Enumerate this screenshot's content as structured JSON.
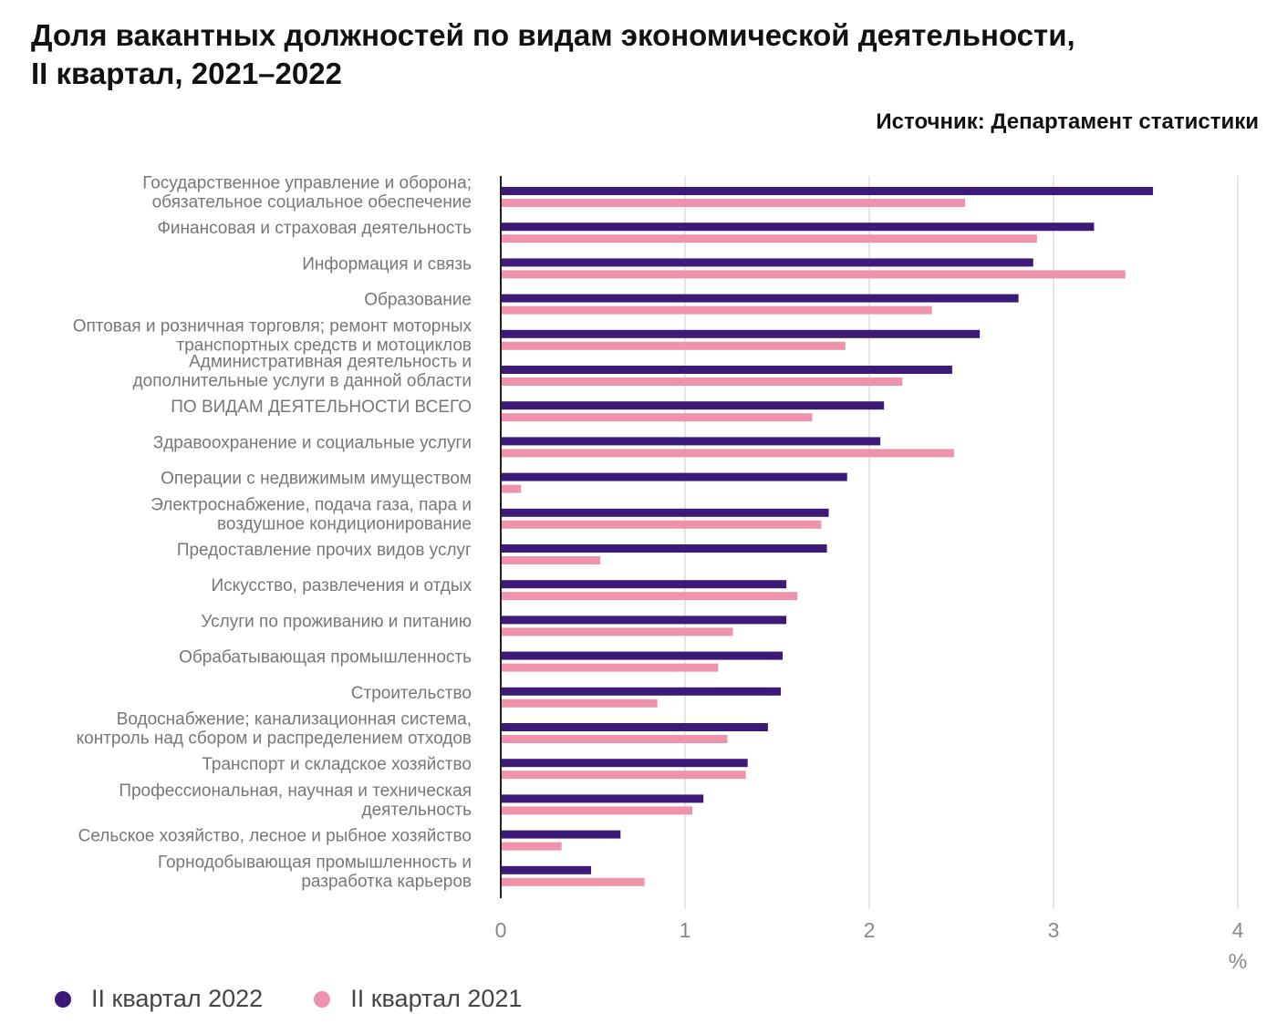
{
  "title_line1": "Доля вакантных должностей по видам экономической деятельности,",
  "title_line2": "II квартал, 2021–2022",
  "source": "Источник: Департамент статистики",
  "colors": {
    "q2_2022": "#3d1a78",
    "q2_2021": "#ef93ad",
    "grid": "#dddddd",
    "axis": "#222222"
  },
  "chart_data": {
    "type": "bar",
    "orientation": "horizontal",
    "categories": [
      [
        "Государственное управление и оборона;",
        "обязательное социальное обеспечение"
      ],
      [
        "Финансовая и страховая деятельность"
      ],
      [
        "Информация и связь"
      ],
      [
        "Образование"
      ],
      [
        "Оптовая и розничная торговля; ремонт моторных",
        "транспортных средств и мотоциклов"
      ],
      [
        "Административная деятельность и",
        "дополнительные услуги в данной области"
      ],
      [
        "ПО ВИДАМ ДЕЯТЕЛЬНОСТИ ВСЕГО"
      ],
      [
        "Здравоохранение и социальные услуги"
      ],
      [
        "Операции с недвижимым имуществом"
      ],
      [
        "Электроснабжение, подача газа, пара и",
        "воздушное кондиционирование"
      ],
      [
        "Предоставление прочих видов услуг"
      ],
      [
        "Искусство, развлечения и отдых"
      ],
      [
        "Услуги по проживанию и питанию"
      ],
      [
        "Обрабатывающая промышленность"
      ],
      [
        "Строительство"
      ],
      [
        "Водоснабжение; канализационная система,",
        "контроль над сбором и распределением отходов"
      ],
      [
        "Транспорт и складское хозяйство"
      ],
      [
        "Профессиональная, научная и техническая",
        "деятельность"
      ],
      [
        "Сельское хозяйство, лесное и рыбное хозяйство"
      ],
      [
        "Горнодобывающая промышленность и",
        "разработка карьеров"
      ]
    ],
    "series": [
      {
        "name": "II квартал 2022",
        "values": [
          3.54,
          3.22,
          2.89,
          2.81,
          2.6,
          2.45,
          2.08,
          2.06,
          1.88,
          1.78,
          1.77,
          1.55,
          1.55,
          1.53,
          1.52,
          1.45,
          1.34,
          1.1,
          0.65,
          0.49
        ]
      },
      {
        "name": "II квартал 2021",
        "values": [
          2.52,
          2.91,
          3.39,
          2.34,
          1.87,
          2.18,
          1.69,
          2.46,
          0.11,
          1.74,
          0.54,
          1.61,
          1.26,
          1.18,
          0.85,
          1.23,
          1.33,
          1.04,
          0.33,
          0.78
        ]
      }
    ],
    "xticks": [
      "0",
      "1",
      "2",
      "3",
      "4"
    ],
    "xlim": [
      0,
      4
    ],
    "x_unit": "%",
    "grid": "vertical",
    "legend_position": "bottom-left"
  }
}
